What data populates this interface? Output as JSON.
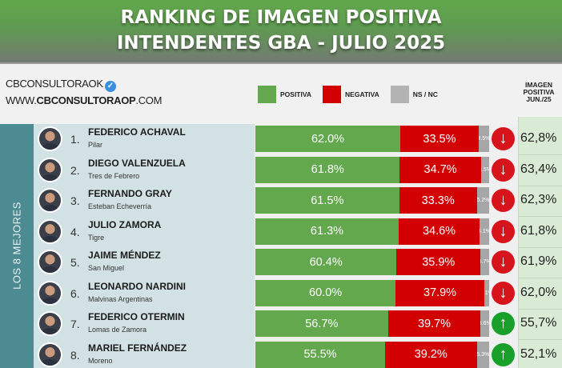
{
  "header": {
    "title_line1": "RANKING DE IMAGEN POSITIVA",
    "title_line2": "INTENDENTES GBA - JULIO 2025"
  },
  "brand": {
    "handle": "CBCONSULTORAOK",
    "verified_icon": "verified-badge-icon",
    "url_prefix": "WWW.",
    "url_bold": "CBCONSULTORAOP",
    "url_suffix": ".COM"
  },
  "legend": [
    {
      "label": "POSITIVA",
      "color": "#63a84d"
    },
    {
      "label": "NEGATIVA",
      "color": "#d20000"
    },
    {
      "label": "NS / NC",
      "color": "#b3b3b3"
    }
  ],
  "jun_column_header": {
    "line1": "IMAGEN",
    "line2": "POSITIVA",
    "line3": "JUN./25"
  },
  "side_label": "LOS 8 MEJORES",
  "rows": [
    {
      "rank": "1.",
      "name": "FEDERICO ACHAVAL",
      "municipality": "Pilar",
      "positiva": "62.0%",
      "negativa": "33.5%",
      "nsnc": "4.5%",
      "trend": "down",
      "trend_icon": "↓",
      "jun": "62,8%"
    },
    {
      "rank": "2.",
      "name": "DIEGO VALENZUELA",
      "municipality": "Tres de Febrero",
      "positiva": "61.8%",
      "negativa": "34.7%",
      "nsnc": "3.5%",
      "trend": "down",
      "trend_icon": "↓",
      "jun": "63,4%"
    },
    {
      "rank": "3.",
      "name": "FERNANDO GRAY",
      "municipality": "Esteban Echeverría",
      "positiva": "61.5%",
      "negativa": "33.3%",
      "nsnc": "5.2%",
      "trend": "down",
      "trend_icon": "↓",
      "jun": "62,3%"
    },
    {
      "rank": "4.",
      "name": "JULIO ZAMORA",
      "municipality": "Tigre",
      "positiva": "61.3%",
      "negativa": "34.6%",
      "nsnc": "4.1%",
      "trend": "down",
      "trend_icon": "↓",
      "jun": "61,8%"
    },
    {
      "rank": "5.",
      "name": "JAIME MÉNDEZ",
      "municipality": "San Miguel",
      "positiva": "60.4%",
      "negativa": "35.9%",
      "nsnc": "3.7%",
      "trend": "down",
      "trend_icon": "↓",
      "jun": "61,9%"
    },
    {
      "rank": "6.",
      "name": "LEONARDO NARDINI",
      "municipality": "Malvinas Argentinas",
      "positiva": "60.0%",
      "negativa": "37.9%",
      "nsnc": "2.1%",
      "trend": "down",
      "trend_icon": "↓",
      "jun": "62,0%"
    },
    {
      "rank": "7.",
      "name": "FEDERICO OTERMIN",
      "municipality": "Lomas de Zamora",
      "positiva": "56.7%",
      "negativa": "39.7%",
      "nsnc": "3.6%",
      "trend": "up",
      "trend_icon": "↑",
      "jun": "55,7%"
    },
    {
      "rank": "8.",
      "name": "MARIEL FERNÁNDEZ",
      "municipality": "Moreno",
      "positiva": "55.5%",
      "negativa": "39.2%",
      "nsnc": "5.3%",
      "trend": "up",
      "trend_icon": "↑",
      "jun": "52,1%"
    }
  ],
  "chart_data": {
    "type": "bar",
    "orientation": "horizontal",
    "stacked": true,
    "title": "RANKING DE IMAGEN POSITIVA INTENDENTES GBA - JULIO 2025",
    "categories": [
      "FEDERICO ACHAVAL (Pilar)",
      "DIEGO VALENZUELA (Tres de Febrero)",
      "FERNANDO GRAY (Esteban Echeverría)",
      "JULIO ZAMORA (Tigre)",
      "JAIME MÉNDEZ (San Miguel)",
      "LEONARDO NARDINI (Malvinas Argentinas)",
      "FEDERICO OTERMIN (Lomas de Zamora)",
      "MARIEL FERNÁNDEZ (Moreno)"
    ],
    "series": [
      {
        "name": "POSITIVA",
        "color": "#63a84d",
        "values": [
          62.0,
          61.8,
          61.5,
          61.3,
          60.4,
          60.0,
          56.7,
          55.5
        ]
      },
      {
        "name": "NEGATIVA",
        "color": "#d20000",
        "values": [
          33.5,
          34.7,
          33.3,
          34.6,
          35.9,
          37.9,
          39.7,
          39.2
        ]
      },
      {
        "name": "NS / NC",
        "color": "#b3b3b3",
        "values": [
          4.5,
          3.5,
          5.2,
          4.1,
          3.7,
          2.1,
          3.6,
          5.3
        ]
      }
    ],
    "comparison": {
      "name": "IMAGEN POSITIVA JUN./25",
      "values": [
        62.8,
        63.4,
        62.3,
        61.8,
        61.9,
        62.0,
        55.7,
        52.1
      ]
    },
    "trend": [
      "down",
      "down",
      "down",
      "down",
      "down",
      "down",
      "up",
      "up"
    ],
    "side_label": "LOS 8 MEJORES",
    "xlim": [
      0,
      100
    ],
    "legend_position": "top"
  }
}
